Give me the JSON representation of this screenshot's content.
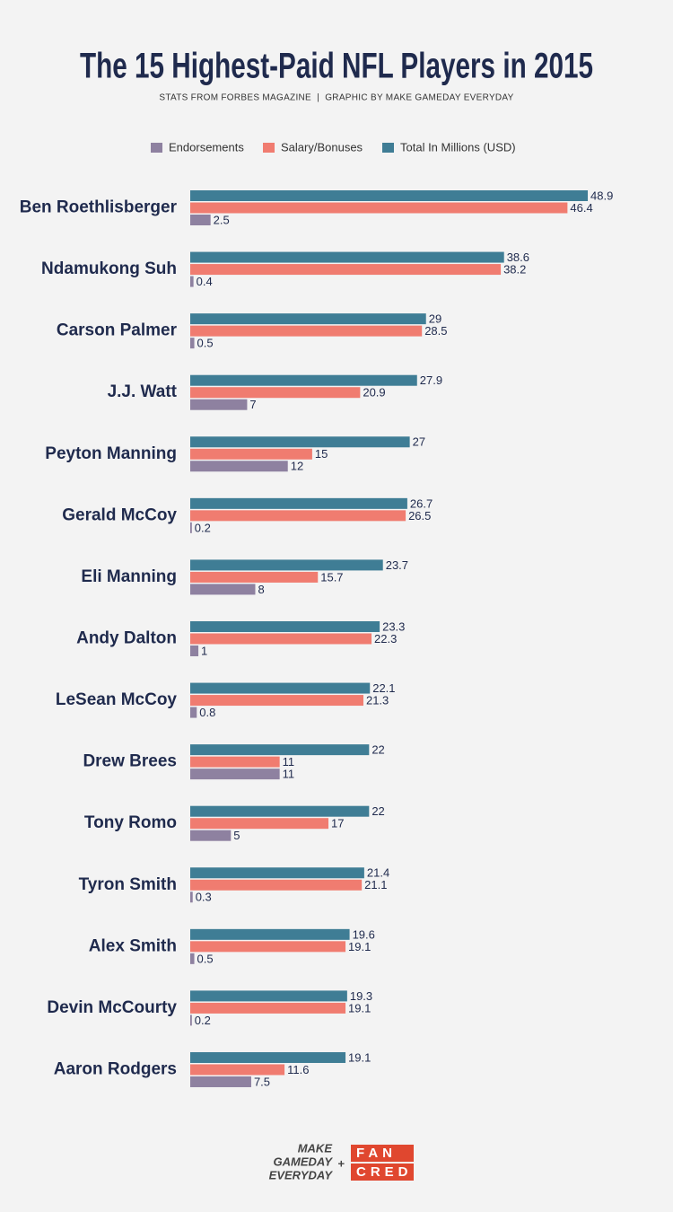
{
  "chart_data": {
    "type": "bar",
    "orientation": "horizontal",
    "title": "The 15 Highest-Paid NFL Players in 2015",
    "subtitle": "STATS FROM FORBES MAGAZINE  |  GRAPHIC BY MAKE GAMEDAY EVERYDAY",
    "categories": [
      "Ben Roethlisberger",
      "Ndamukong Suh",
      "Carson Palmer",
      "J.J. Watt",
      "Peyton Manning",
      "Gerald McCoy",
      "Eli Manning",
      "Andy Dalton",
      "LeSean McCoy",
      "Drew Brees",
      "Tony Romo",
      "Tyron Smith",
      "Alex Smith",
      "Devin McCourty",
      "Aaron Rodgers"
    ],
    "series": [
      {
        "name": "Endorsements",
        "color": "#8e81a0",
        "values": [
          2.5,
          0.4,
          0.5,
          7,
          12,
          0.2,
          8,
          1,
          0.8,
          11,
          5,
          0.3,
          0.5,
          0.2,
          7.5
        ]
      },
      {
        "name": "Salary/Bonuses",
        "color": "#f07c70",
        "values": [
          46.4,
          38.2,
          28.5,
          20.9,
          15,
          26.5,
          15.7,
          22.3,
          21.3,
          11,
          17,
          21.1,
          19.1,
          19.1,
          11.6
        ]
      },
      {
        "name": "Total In Millions (USD)",
        "color": "#3f7d95",
        "values": [
          48.9,
          38.6,
          29,
          27.9,
          27,
          26.7,
          23.7,
          23.3,
          22.1,
          22,
          22,
          21.4,
          19.6,
          19.3,
          19.1
        ]
      }
    ],
    "xlim": [
      0,
      50
    ],
    "legend": "top"
  },
  "footer": {
    "left": [
      "MAKE",
      "GAMEDAY",
      "EVERYDAY"
    ],
    "plus": "+",
    "right": [
      "FAN",
      "CRED"
    ]
  }
}
